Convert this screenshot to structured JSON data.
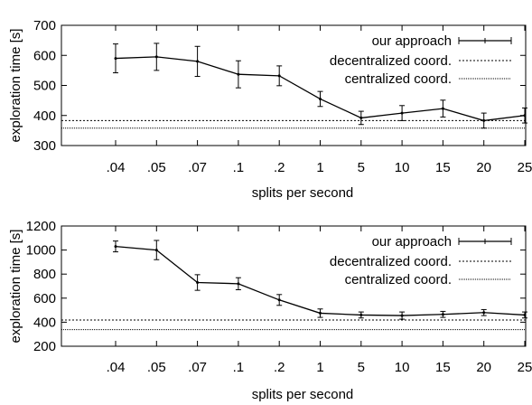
{
  "chart_data": [
    {
      "type": "line",
      "xlabel": "splits per second",
      "ylabel": "exploration time [s]",
      "categories": [
        ".04",
        ".05",
        ".07",
        ".1",
        ".2",
        "1",
        "5",
        "10",
        "15",
        "20",
        "25"
      ],
      "ylim": [
        300,
        700
      ],
      "yticks": [
        300,
        400,
        500,
        600,
        700
      ],
      "grid": false,
      "legend_position": "top-right",
      "series": [
        {
          "name": "our approach",
          "values": [
            590,
            595,
            580,
            537,
            532,
            455,
            392,
            408,
            423,
            383,
            400
          ],
          "errors": [
            48,
            45,
            50,
            45,
            33,
            25,
            22,
            25,
            28,
            25,
            25
          ],
          "style": "solid-errorbars"
        },
        {
          "name": "decentralized coord.",
          "constant": 383,
          "style": "dotted"
        },
        {
          "name": "centralized coord.",
          "constant": 358,
          "style": "dotted-fine"
        }
      ]
    },
    {
      "type": "line",
      "xlabel": "splits per second",
      "ylabel": "exploration time [s]",
      "categories": [
        ".04",
        ".05",
        ".07",
        ".1",
        ".2",
        "1",
        "5",
        "10",
        "15",
        "20",
        "25"
      ],
      "ylim": [
        200,
        1200
      ],
      "yticks": [
        200,
        400,
        600,
        800,
        1000,
        1200
      ],
      "grid": false,
      "legend_position": "top-right",
      "series": [
        {
          "name": "our approach",
          "values": [
            1030,
            1000,
            730,
            720,
            585,
            475,
            460,
            455,
            465,
            480,
            460
          ],
          "errors": [
            45,
            80,
            65,
            50,
            45,
            35,
            25,
            30,
            25,
            25,
            25
          ],
          "style": "solid-errorbars"
        },
        {
          "name": "decentralized coord.",
          "constant": 418,
          "style": "dotted"
        },
        {
          "name": "centralized coord.",
          "constant": 338,
          "style": "dotted-fine"
        }
      ]
    }
  ]
}
